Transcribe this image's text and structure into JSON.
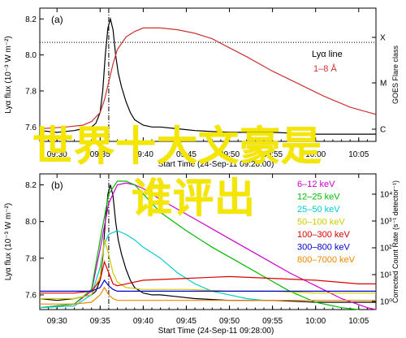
{
  "overlay": {
    "line1": "世界十大文豪是",
    "line2": "谁评出"
  },
  "colors": {
    "lya": "#000000",
    "goes": "#cc3333",
    "6-12 keV": "#cc00cc",
    "12-25 keV": "#00bb00",
    "25-50 keV": "#00cccc",
    "50-100 keV": "#cccc00",
    "100-300 keV": "#dd0000",
    "300-800 keV": "#0000cc",
    "800-7000 keV": "#ee8800"
  },
  "chart_data": [
    {
      "type": "line",
      "panel_label": "(a)",
      "xlabel": "Start Time (24-Sep-11 09:28:00)",
      "ylabel": "Lyα flux (10⁻³ W m⁻²)",
      "y2label": "GOES Flare class",
      "x_ticks": [
        "09:30",
        "09:35",
        "09:40",
        "09:45",
        "09:50",
        "09:55",
        "10:00",
        "10:05"
      ],
      "xlim": [
        "09:28",
        "10:07"
      ],
      "ylim": [
        7.52,
        8.26
      ],
      "y_ticks": [
        7.6,
        7.8,
        8.0,
        8.2
      ],
      "y2_ticks": [
        "X",
        "M",
        "C"
      ],
      "dashed_vline": "09:36",
      "dotted_hline": 8.07,
      "legend": [
        "Lyα line",
        "1–8 Å"
      ],
      "series": [
        {
          "name": "Lyα line",
          "x": [
            28,
            30,
            32,
            33,
            34,
            34.5,
            35,
            35.3,
            35.6,
            35.9,
            36.2,
            36.5,
            36.8,
            37.1,
            37.5,
            38,
            38.5,
            39,
            40,
            41,
            42,
            44,
            46,
            50,
            55,
            60,
            65,
            67
          ],
          "y": [
            7.58,
            7.57,
            7.58,
            7.59,
            7.6,
            7.62,
            7.68,
            7.8,
            8.0,
            8.15,
            8.2,
            8.14,
            8.0,
            7.9,
            7.82,
            7.74,
            7.68,
            7.64,
            7.61,
            7.6,
            7.6,
            7.59,
            7.58,
            7.57,
            7.57,
            7.56,
            7.56,
            7.56
          ]
        },
        {
          "name": "1–8 Å",
          "x": [
            28,
            31,
            33,
            34,
            35,
            35.5,
            36,
            36.5,
            37,
            38,
            39,
            40,
            41,
            42,
            44,
            46,
            48,
            50,
            52,
            55,
            58,
            61,
            64,
            67
          ],
          "y": [
            7.59,
            7.6,
            7.61,
            7.63,
            7.68,
            7.75,
            7.85,
            7.95,
            8.03,
            8.1,
            8.13,
            8.15,
            8.15,
            8.15,
            8.14,
            8.12,
            8.09,
            8.04,
            7.99,
            7.91,
            7.84,
            7.77,
            7.71,
            7.67
          ]
        }
      ]
    },
    {
      "type": "line",
      "panel_label": "(b)",
      "xlabel": "Start Time (24-Sep-11 09:28:00)",
      "ylabel": "Lyα flux (10⁻³ W m⁻²)",
      "y2label": "Corrected Count Rate (s⁻¹ detector⁻¹)",
      "x_ticks": [
        "09:30",
        "09:35",
        "09:40",
        "09:45",
        "09:50",
        "09:55",
        "10:00",
        "10:05"
      ],
      "xlim": [
        "09:28",
        "10:07"
      ],
      "ylim": [
        7.52,
        8.26
      ],
      "y_ticks": [
        7.6,
        7.8,
        8.0,
        8.2
      ],
      "y2_ticks": [
        "10⁴",
        "10³",
        "10²",
        "10¹",
        "10⁰"
      ],
      "dashed_vline": "09:36",
      "legend": [
        "6–12 keV",
        "12–25 keV",
        "25–50 keV",
        "50–100 keV",
        "100–300 keV",
        "300–800 keV",
        "800–7000 keV"
      ],
      "series": [
        {
          "name": "Lyα flux",
          "x": [
            28,
            30,
            32,
            33,
            34,
            34.5,
            35,
            35.3,
            35.6,
            35.9,
            36.2,
            36.5,
            36.8,
            37.1,
            37.5,
            38,
            38.5,
            39,
            40,
            41,
            42,
            44,
            46,
            50,
            55,
            60,
            65,
            67
          ],
          "y": [
            7.58,
            7.57,
            7.58,
            7.59,
            7.6,
            7.62,
            7.68,
            7.8,
            8.0,
            8.15,
            8.2,
            8.14,
            8.0,
            7.9,
            7.82,
            7.74,
            7.68,
            7.64,
            7.61,
            7.6,
            7.6,
            7.59,
            7.58,
            7.57,
            7.57,
            7.56,
            7.56,
            7.56
          ]
        },
        {
          "name": "6–12 keV",
          "x": [
            28,
            32,
            34,
            35,
            36,
            37,
            38,
            39,
            40,
            42,
            45,
            48,
            51,
            54,
            57,
            60,
            63,
            66,
            67
          ],
          "y": [
            7.53,
            7.55,
            7.62,
            7.85,
            8.1,
            8.2,
            8.21,
            8.2,
            8.18,
            8.12,
            8.04,
            7.96,
            7.88,
            7.8,
            7.72,
            7.65,
            7.58,
            7.53,
            7.52
          ]
        },
        {
          "name": "12–25 keV",
          "x": [
            28,
            32,
            34,
            35,
            36,
            37,
            38,
            39,
            40,
            42,
            45,
            48,
            51,
            54,
            57,
            60,
            63,
            65
          ],
          "y": [
            7.53,
            7.55,
            7.63,
            7.9,
            8.15,
            8.22,
            8.22,
            8.2,
            8.15,
            8.05,
            7.95,
            7.86,
            7.78,
            7.7,
            7.62,
            7.56,
            7.53,
            7.52
          ]
        },
        {
          "name": "25–50 keV",
          "x": [
            28,
            32,
            34,
            35,
            35.5,
            36,
            37,
            38,
            39,
            40,
            42,
            44,
            46,
            48,
            50,
            52,
            54
          ],
          "y": [
            7.53,
            7.54,
            7.6,
            7.75,
            7.88,
            7.93,
            7.95,
            7.93,
            7.9,
            7.86,
            7.8,
            7.72,
            7.66,
            7.62,
            7.6,
            7.58,
            7.57
          ]
        },
        {
          "name": "50–100 keV",
          "x": [
            28,
            32,
            34,
            35,
            35.5,
            36,
            36.5,
            37,
            38,
            40,
            45,
            50,
            55,
            60,
            65,
            67
          ],
          "y": [
            7.58,
            7.58,
            7.6,
            7.7,
            7.9,
            7.82,
            7.72,
            7.67,
            7.64,
            7.63,
            7.63,
            7.62,
            7.62,
            7.61,
            7.61,
            7.61
          ]
        },
        {
          "name": "100–300 keV",
          "x": [
            28,
            32,
            34,
            35,
            35.5,
            36,
            36.5,
            37,
            38,
            40,
            45,
            50,
            55,
            60,
            65,
            67
          ],
          "y": [
            7.61,
            7.61,
            7.62,
            7.68,
            7.78,
            7.72,
            7.66,
            7.65,
            7.66,
            7.68,
            7.69,
            7.7,
            7.69,
            7.68,
            7.66,
            7.66
          ]
        },
        {
          "name": "300–800 keV",
          "x": [
            28,
            32,
            34,
            35,
            35.5,
            36,
            36.5,
            37,
            38,
            40,
            45,
            50,
            55,
            60,
            65,
            67
          ],
          "y": [
            7.62,
            7.62,
            7.62,
            7.64,
            7.68,
            7.65,
            7.63,
            7.62,
            7.62,
            7.62,
            7.62,
            7.62,
            7.62,
            7.62,
            7.62,
            7.62
          ]
        },
        {
          "name": "800–7000 keV",
          "x": [
            28,
            32,
            34,
            35,
            35.5,
            36,
            36.5,
            37,
            38,
            40,
            45,
            50,
            55,
            60,
            65,
            67
          ],
          "y": [
            7.55,
            7.55,
            7.56,
            7.6,
            7.64,
            7.6,
            7.58,
            7.57,
            7.57,
            7.57,
            7.57,
            7.57,
            7.57,
            7.57,
            7.57,
            7.57
          ]
        }
      ]
    }
  ]
}
